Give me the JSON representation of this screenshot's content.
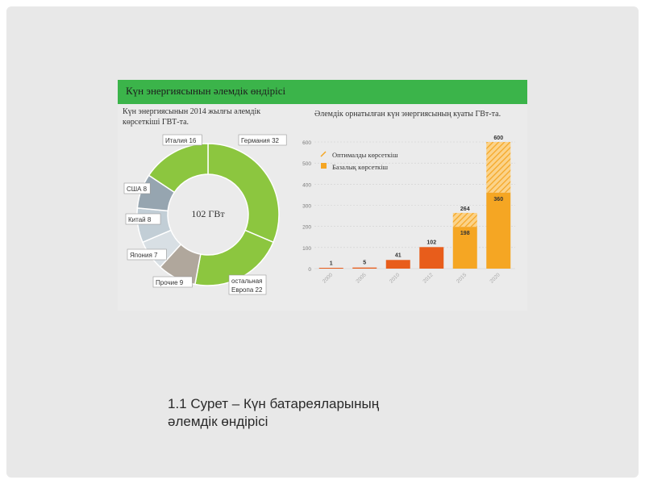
{
  "banner_title": "Күн энергиясынын әлемдік өндірісі",
  "caption": {
    "line1": "1.1 Сурет – Күн батареяларының",
    "line2": "әлемдік өндірісі"
  },
  "colors": {
    "banner": "#3bb44a",
    "donut_green": "#8cc63f",
    "bar_base": "#f5a623",
    "bar_early": "#e85d1b",
    "bar_optimal": "#f5a623"
  },
  "chart_data": [
    {
      "type": "pie",
      "title": "Күн энергиясынын 2014 жылғы әлемдік көрсеткіші ГВТ-та.",
      "center_label": "102 ГВт",
      "slices": [
        {
          "label": "Германия",
          "value": 32,
          "color": "#8cc63f"
        },
        {
          "label": "остальная Европа",
          "value": 22,
          "color": "#8cc63f"
        },
        {
          "label": "Прочие",
          "value": 9,
          "color": "#b0a79c"
        },
        {
          "label": "Япония",
          "value": 7,
          "color": "#d8dfe4"
        },
        {
          "label": "Китай",
          "value": 8,
          "color": "#c2ced6"
        },
        {
          "label": "США",
          "value": 8,
          "color": "#96a5b0"
        },
        {
          "label": "Италия",
          "value": 16,
          "color": "#8cc63f"
        }
      ]
    },
    {
      "type": "bar",
      "title": "Әлемдік орнатылған күн энергиясының куаты ГВт-та.",
      "categories": [
        "2000",
        "2005",
        "2010",
        "2012",
        "2015",
        "2020"
      ],
      "series": [
        {
          "name": "Базалық көрсеткіш",
          "values": [
            1,
            5,
            41,
            102,
            198,
            360
          ]
        },
        {
          "name": "Оптималды көрсеткіш",
          "values": [
            1,
            5,
            41,
            102,
            264,
            600
          ]
        }
      ],
      "ylim": [
        0,
        600
      ],
      "yticks": [
        0,
        100,
        200,
        300,
        400,
        500,
        600
      ],
      "legend": "top-left"
    }
  ]
}
